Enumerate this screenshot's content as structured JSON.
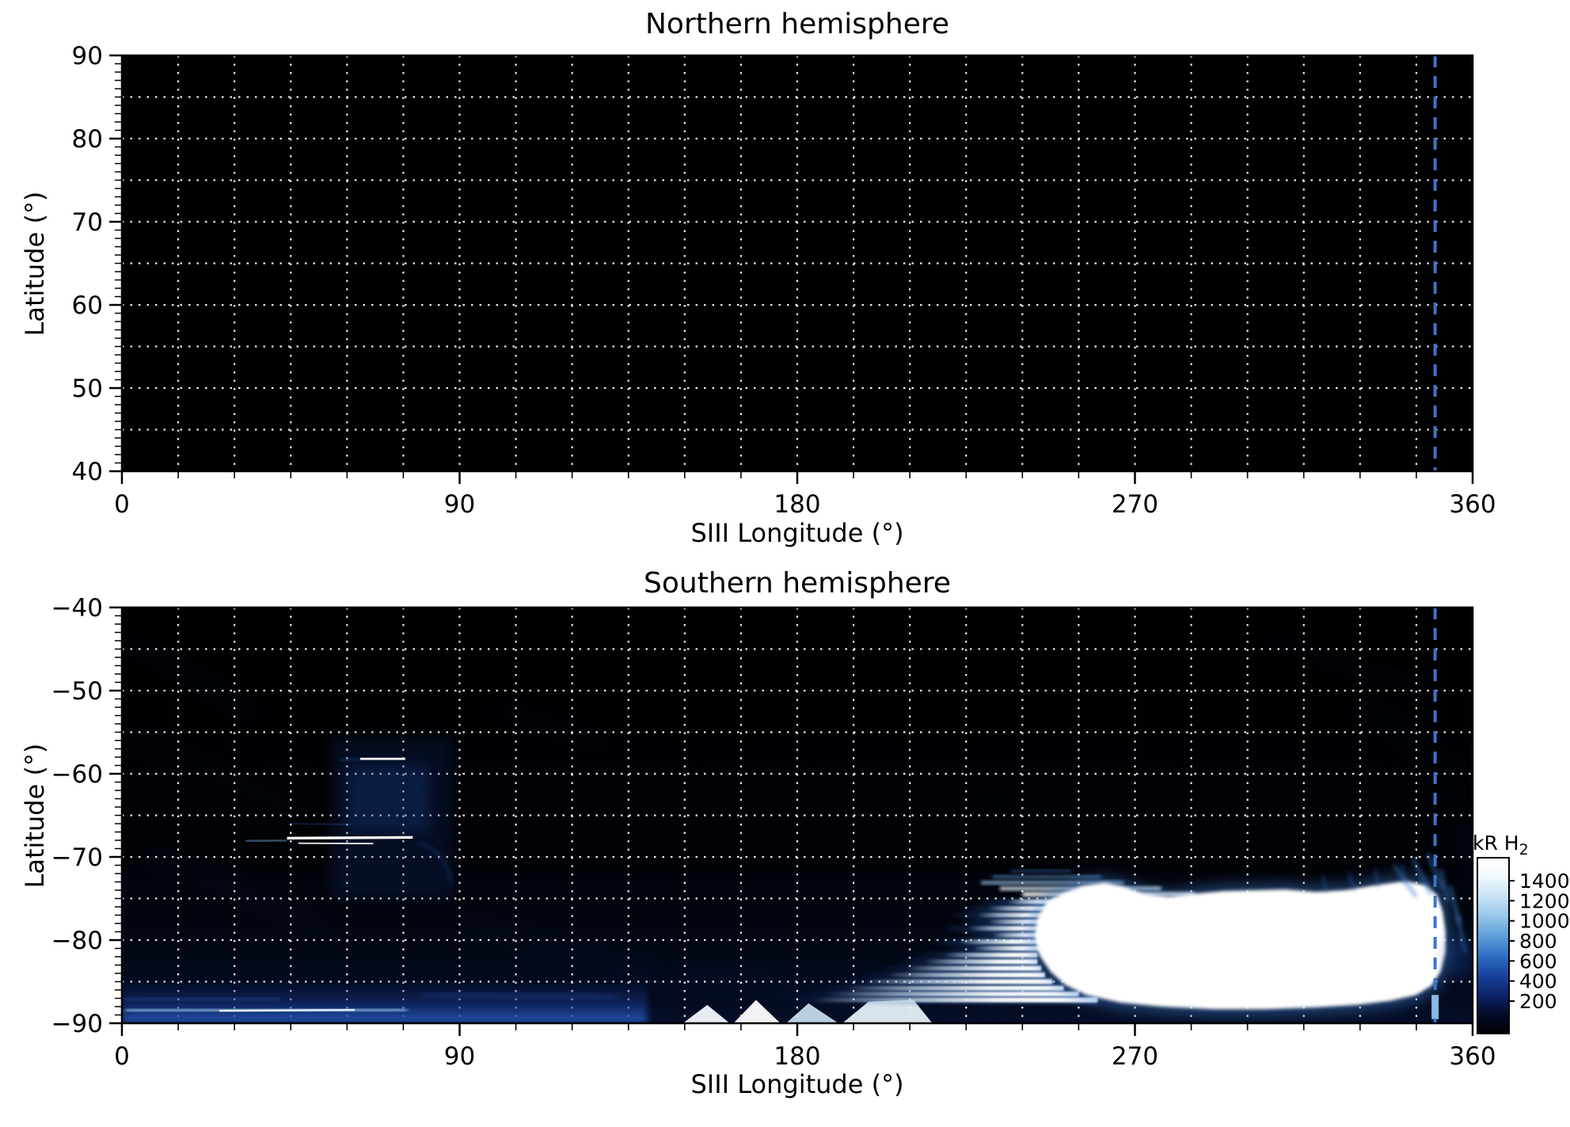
{
  "figure": {
    "background": "#ffffff",
    "plot_background": "#000000",
    "grid_color": "#ffffff",
    "axis_color": "#000000",
    "dashed_line_color": "#3b74cc"
  },
  "chart_data": [
    {
      "type": "heatmap",
      "panel": "north",
      "title": "Northern hemisphere",
      "xlabel": "SIII Longitude (°)",
      "ylabel": "Latitude (°)",
      "xlim": [
        0,
        360
      ],
      "ylim": [
        40,
        90
      ],
      "xticks": [
        0,
        90,
        180,
        270,
        360
      ],
      "yticks": [
        90,
        80,
        70,
        60,
        50,
        40
      ],
      "x_grid_step": 15,
      "y_grid_step": 5,
      "x_minor_step": 15,
      "y_minor_step": 1,
      "grid_style": "dotted",
      "marker_longitude": 350,
      "emission": "none visible; panel entirely dark"
    },
    {
      "type": "heatmap",
      "panel": "south",
      "title": "Southern hemisphere",
      "xlabel": "SIII Longitude (°)",
      "ylabel": "Latitude (°)",
      "xlim": [
        0,
        360
      ],
      "ylim": [
        -90,
        -40
      ],
      "xticks": [
        0,
        90,
        180,
        270,
        360
      ],
      "yticks": [
        -40,
        -50,
        -60,
        -70,
        -80,
        -90
      ],
      "x_grid_step": 15,
      "y_grid_step": 5,
      "x_minor_step": 15,
      "y_minor_step": 1,
      "grid_style": "dotted",
      "marker_longitude": 350,
      "marker_tip": {
        "lat_start": -86.6,
        "lat_end": -89.5
      },
      "features": {
        "faint_wisps": [
          {
            "x1": 2,
            "y1": -44,
            "x2": 34,
            "y2": -52,
            "o": 0.1
          },
          {
            "x1": 4,
            "y1": -56,
            "x2": 46,
            "y2": -64,
            "o": 0.12
          },
          {
            "x1": 8,
            "y1": -70,
            "x2": 52,
            "y2": -78,
            "o": 0.12
          },
          {
            "x1": 92,
            "y1": -78,
            "x2": 142,
            "y2": -84,
            "o": 0.12
          },
          {
            "x1": 150,
            "y1": -84,
            "x2": 205,
            "y2": -87,
            "o": 0.12
          },
          {
            "x1": 305,
            "y1": -44,
            "x2": 348,
            "y2": -50,
            "o": 0.08
          },
          {
            "x1": 332,
            "y1": -52,
            "x2": 358,
            "y2": -61,
            "o": 0.1
          },
          {
            "x1": 352,
            "y1": -62,
            "x2": 359,
            "y2": -70,
            "o": 0.1
          },
          {
            "x1": 215,
            "y1": -60,
            "x2": 252,
            "y2": -66,
            "o": 0.05
          },
          {
            "x1": 100,
            "y1": -52,
            "x2": 130,
            "y2": -57,
            "o": 0.06
          }
        ],
        "polar_band": {
          "lon_start": 0,
          "lon_end": 140,
          "lat_start": -84.6,
          "lat_end": -90,
          "bright_arc": {
            "lat": -88.5,
            "lon_start": 1,
            "lon_end": 76,
            "core_lon_start": 26,
            "core_lon_end": 62
          },
          "secondary_arc": {
            "lat": -87.2,
            "lon_start": 0,
            "lon_end": 42
          },
          "outer_patch": {
            "lat": -86.5,
            "lon_start": 80,
            "lon_end": 132
          }
        },
        "diffuse_column": {
          "lon_start": 56,
          "lon_end": 88,
          "lat_start": -55.5,
          "lat_end": -75,
          "inner": {
            "lon_start": 60,
            "lon_end": 82,
            "lat_start": -59,
            "lat_end": -67
          },
          "right_edge_lon": 87.5,
          "right_edge_lat_start": -58,
          "right_edge_lat_end": -73
        },
        "bright_arcs": [
          {
            "name": "arc-high-lat",
            "lat": -58.2,
            "lon_start": 63.5,
            "lon_end": 75.5,
            "peak_kR": 1400
          },
          {
            "name": "arc-main-oval",
            "lat": -67.7,
            "lon_start": 44,
            "lon_end": 77.5,
            "glow_lon_start": 38,
            "glow_lon_end": 79,
            "second_filament": {
              "lat": -68.35,
              "lon_start": 47,
              "lon_end": 67
            },
            "tail": {
              "lat": -68.1,
              "lon_start": 33,
              "lon_end": 44
            },
            "peak_kR": 1500
          }
        ],
        "arc_extension": {
          "from": [
            79,
            -68.3
          ],
          "ctrl": [
            86.5,
            -69.3
          ],
          "to": [
            88,
            -73.5
          ]
        },
        "bottom_wedges": [
          {
            "pts": [
              [
                149.5,
                -90
              ],
              [
                156,
                -87.8
              ],
              [
                162,
                -90
              ]
            ],
            "c": "#f2f9fd",
            "o": 0.95
          },
          {
            "pts": [
              [
                163,
                -90
              ],
              [
                169,
                -87.2
              ],
              [
                175.5,
                -90
              ]
            ],
            "c": "#ffffff",
            "o": 0.95
          },
          {
            "pts": [
              [
                177,
                -90
              ],
              [
                183,
                -87.6
              ],
              [
                191,
                -90
              ]
            ],
            "c": "#cfe4f4",
            "o": 0.9
          },
          {
            "pts": [
              [
                192,
                -90
              ],
              [
                199,
                -87.4
              ],
              [
                211,
                -87.2
              ],
              [
                216,
                -90
              ]
            ],
            "c": "#e9f4fb",
            "o": 0.92
          }
        ],
        "main_region": {
          "description": "saturated bright emission region (> 1400 kR, rendered white)",
          "outline": [
            [
              246.5,
              -75.4
            ],
            [
              251,
              -74.3
            ],
            [
              256,
              -73.5
            ],
            [
              262,
              -73.1
            ],
            [
              267,
              -73.6
            ],
            [
              272,
              -74.4
            ],
            [
              279,
              -74.8
            ],
            [
              286,
              -74.4
            ],
            [
              294,
              -74.1
            ],
            [
              302,
              -74.0
            ],
            [
              310,
              -73.9
            ],
            [
              318,
              -74.2
            ],
            [
              326,
              -74.0
            ],
            [
              334,
              -73.4
            ],
            [
              342,
              -72.9
            ],
            [
              347.5,
              -73.4
            ],
            [
              350.5,
              -74.6
            ],
            [
              352,
              -76.5
            ],
            [
              352.8,
              -79
            ],
            [
              352.8,
              -81.5
            ],
            [
              351.5,
              -83.8
            ],
            [
              349,
              -85.5
            ],
            [
              345,
              -86.6
            ],
            [
              338,
              -87.3
            ],
            [
              329,
              -87.8
            ],
            [
              318,
              -88.1
            ],
            [
              305,
              -88.3
            ],
            [
              291,
              -88.3
            ],
            [
              277,
              -88.0
            ],
            [
              266,
              -87.5
            ],
            [
              257,
              -86.6
            ],
            [
              251.5,
              -85.4
            ],
            [
              247.5,
              -83.8
            ],
            [
              244.5,
              -81.8
            ],
            [
              243.3,
              -79.6
            ],
            [
              244,
              -77.4
            ]
          ],
          "striations": [
            {
              "lat": -75.4,
              "a": 236,
              "b": 250
            },
            {
              "lat": -76.2,
              "a": 231,
              "b": 249
            },
            {
              "lat": -77.0,
              "a": 228,
              "b": 248
            },
            {
              "lat": -77.8,
              "a": 231,
              "b": 247
            },
            {
              "lat": -78.6,
              "a": 226,
              "b": 246
            },
            {
              "lat": -79.4,
              "a": 232,
              "b": 246
            },
            {
              "lat": -80.2,
              "a": 223,
              "b": 245
            },
            {
              "lat": -81.0,
              "a": 227,
              "b": 245
            },
            {
              "lat": -81.8,
              "a": 219,
              "b": 244
            },
            {
              "lat": -82.6,
              "a": 214,
              "b": 244
            },
            {
              "lat": -83.4,
              "a": 209,
              "b": 245
            },
            {
              "lat": -84.2,
              "a": 204,
              "b": 246
            },
            {
              "lat": -85.0,
              "a": 198,
              "b": 248
            },
            {
              "lat": -85.8,
              "a": 193,
              "b": 251
            },
            {
              "lat": -86.5,
              "a": 188,
              "b": 255
            },
            {
              "lat": -87.2,
              "a": 184,
              "b": 260
            }
          ],
          "top_fringe": [
            {
              "lat": -71.7,
              "a": 237,
              "b": 253,
              "c": "#3c6fc0",
              "o": 0.6,
              "w": 3
            },
            {
              "lat": -72.4,
              "a": 232,
              "b": 261,
              "c": "#639ad6",
              "o": 0.7,
              "w": 3.5
            },
            {
              "lat": -73.1,
              "a": 229,
              "b": 267,
              "c": "#9cc5ea",
              "o": 0.85,
              "w": 4
            },
            {
              "lat": -73.8,
              "a": 234,
              "b": 277,
              "c": "#d9ecf8",
              "o": 0.92,
              "w": 4.5
            },
            {
              "lat": -74.5,
              "a": 240,
              "b": 286,
              "c": "#ffffff",
              "o": 0.95,
              "w": 5.5
            }
          ],
          "right_wisps": [
            {
              "x1": 344,
              "y1": -70.2,
              "x2": 349,
              "y2": -74.5
            },
            {
              "x1": 348,
              "y1": -69.6,
              "x2": 352,
              "y2": -73.8
            },
            {
              "x1": 351.5,
              "y1": -71.5,
              "x2": 353.5,
              "y2": -75.5
            },
            {
              "x1": 339,
              "y1": -71.0,
              "x2": 345,
              "y2": -74.8
            },
            {
              "x1": 354,
              "y1": -73.5,
              "x2": 356.5,
              "y2": -78
            },
            {
              "x1": 356,
              "y1": -77,
              "x2": 358,
              "y2": -81.5
            }
          ],
          "top_wisps": [
            {
              "x1": 320,
              "y1": -72.2,
              "x2": 321,
              "y2": -74.2
            },
            {
              "x1": 327,
              "y1": -71.8,
              "x2": 328.5,
              "y2": -74
            },
            {
              "x1": 334,
              "y1": -71.4,
              "x2": 335,
              "y2": -73.6
            },
            {
              "x1": 341,
              "y1": -70.8,
              "x2": 342,
              "y2": -73.2
            }
          ],
          "corner_patch": {
            "lon": 356.5,
            "lat": -82
          }
        }
      }
    }
  ],
  "colorbar": {
    "title": "kR H",
    "title_subscript": "2",
    "tick_values": [
      1400,
      1200,
      1000,
      800,
      600,
      400,
      200
    ],
    "colormap": [
      {
        "v": -120,
        "c": "#000000"
      },
      {
        "v": 100,
        "c": "#050f33"
      },
      {
        "v": 250,
        "c": "#0c2366"
      },
      {
        "v": 450,
        "c": "#16419c"
      },
      {
        "v": 650,
        "c": "#2e6ec4"
      },
      {
        "v": 850,
        "c": "#5f9fd9"
      },
      {
        "v": 1050,
        "c": "#97c7ea"
      },
      {
        "v": 1250,
        "c": "#c9e4f6"
      },
      {
        "v": 1450,
        "c": "#f2f9fd"
      },
      {
        "v": 1600,
        "c": "#ffffff"
      }
    ]
  }
}
